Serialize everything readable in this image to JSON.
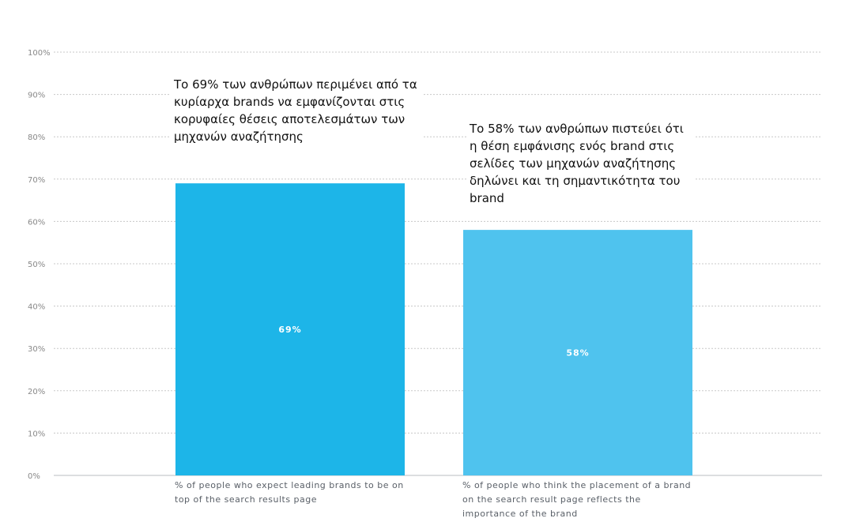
{
  "chart_data": {
    "type": "bar",
    "categories": [
      "% of people who expect leading brands to be on top of the search results page",
      "% of people who think the placement of a brand on the search result page reflects the importance of the brand"
    ],
    "values": [
      69,
      58
    ],
    "data_labels": [
      "69%",
      "58%"
    ],
    "ylim": [
      0,
      100
    ],
    "yticks": [
      "0%",
      "10%",
      "20%",
      "30%",
      "40%",
      "50%",
      "60%",
      "70%",
      "80%",
      "90%",
      "100%"
    ],
    "grid": true,
    "colors": [
      "#1db5e8",
      "#4fc3ee"
    ],
    "annotations": [
      "Το 69% των ανθρώπων περιμένει από τα κυρίαρχα brands να εμφανίζονται στις κορυφαίες θέσεις αποτελεσμάτων των μηχανών αναζήτησης",
      "Το 58% των ανθρώπων πιστεύει ότι η θέση εμφάνισης ενός brand στις σελίδες των μηχανών αναζήτησης δηλώνει και τη σημαντικότητα του brand"
    ]
  }
}
